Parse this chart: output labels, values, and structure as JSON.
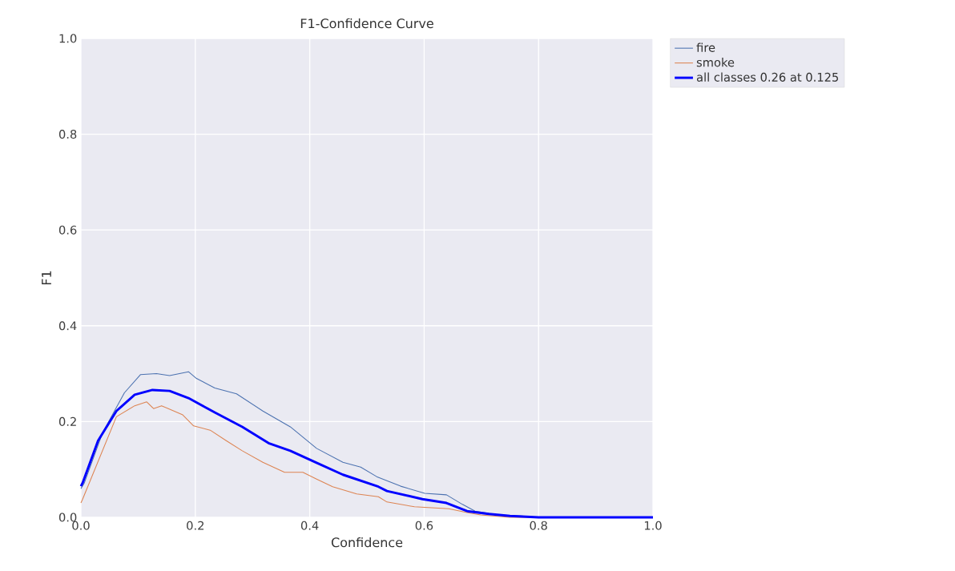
{
  "chart_data": {
    "type": "line",
    "title": "F1-Confidence Curve",
    "xlabel": "Confidence",
    "ylabel": "F1",
    "xlim": [
      0,
      1
    ],
    "ylim": [
      0,
      1
    ],
    "xticks": [
      {
        "value": 0,
        "label": "0.0"
      },
      0.2,
      0.4,
      0.6,
      0.8,
      {
        "value": 1,
        "label": "1.0"
      }
    ],
    "yticks": [
      {
        "value": 0,
        "label": "0.0"
      },
      0.2,
      0.4,
      0.6,
      0.8,
      {
        "value": 1,
        "label": "1.0"
      }
    ],
    "grid": true,
    "legend": "top right",
    "marker": "none",
    "line_style": "solid",
    "series": [
      {
        "name": "fire",
        "color": "#4c72b0",
        "x": [
          0.0,
          0.006,
          0.038,
          0.076,
          0.104,
          0.132,
          0.155,
          0.188,
          0.202,
          0.234,
          0.272,
          0.318,
          0.366,
          0.412,
          0.458,
          0.489,
          0.517,
          0.559,
          0.601,
          0.639,
          0.667,
          0.689,
          0.73,
          0.77,
          0.8,
          1.0
        ],
        "values": [
          0.06,
          0.072,
          0.177,
          0.26,
          0.298,
          0.3,
          0.296,
          0.304,
          0.29,
          0.27,
          0.258,
          0.222,
          0.189,
          0.144,
          0.115,
          0.105,
          0.085,
          0.065,
          0.05,
          0.047,
          0.027,
          0.013,
          0.005,
          0.003,
          0.0,
          0.0
        ]
      },
      {
        "name": "smoke",
        "color": "#dd8452",
        "x": [
          0.0,
          0.003,
          0.03,
          0.062,
          0.094,
          0.115,
          0.127,
          0.141,
          0.178,
          0.197,
          0.226,
          0.254,
          0.282,
          0.318,
          0.356,
          0.388,
          0.412,
          0.44,
          0.482,
          0.52,
          0.535,
          0.583,
          0.643,
          0.675,
          0.699,
          0.75,
          1.0
        ],
        "values": [
          0.03,
          0.038,
          null,
          0.21,
          0.233,
          0.241,
          0.227,
          0.233,
          0.214,
          0.191,
          0.182,
          0.16,
          0.139,
          0.115,
          0.094,
          0.094,
          0.08,
          0.064,
          0.049,
          0.043,
          0.032,
          0.022,
          0.018,
          0.01,
          0.005,
          0.0,
          0.0
        ]
      },
      {
        "name": "all classes 0.26 at 0.125",
        "color": "#0000ff",
        "x": [
          0.0,
          0.003,
          0.03,
          0.062,
          0.094,
          0.125,
          0.155,
          0.188,
          0.234,
          0.282,
          0.328,
          0.366,
          0.412,
          0.458,
          0.52,
          0.535,
          0.597,
          0.639,
          0.675,
          0.713,
          0.75,
          0.8,
          1.0
        ],
        "values": [
          0.065,
          0.072,
          0.16,
          0.222,
          0.256,
          0.266,
          0.264,
          0.249,
          0.219,
          0.189,
          0.155,
          0.139,
          0.114,
          0.089,
          0.064,
          0.055,
          0.038,
          0.03,
          0.013,
          0.007,
          0.003,
          0.0,
          0.0
        ]
      }
    ]
  }
}
